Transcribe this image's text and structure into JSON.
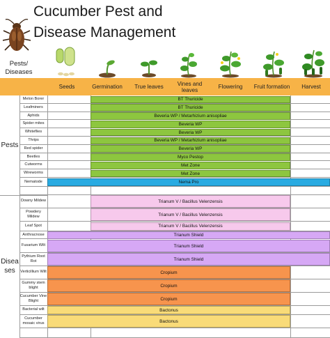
{
  "title": [
    "Cucumber Pest and",
    "Disease Management"
  ],
  "corner_label": [
    "Pests/",
    "Diseases"
  ],
  "stages": [
    {
      "label": "Seeds",
      "center": 94,
      "icon": "seeds-icon"
    },
    {
      "label": "Germination",
      "center": 154,
      "icon": "germination-sprout-icon"
    },
    {
      "label": "True leaves",
      "center": 214,
      "icon": "true-leaves-seedling-icon"
    },
    {
      "label": "Vines and leaves",
      "center": 271,
      "icon": "vine-plant-icon"
    },
    {
      "label": "Flowering",
      "center": 331,
      "icon": "flowering-plant-icon"
    },
    {
      "label": "Fruit formation",
      "center": 393,
      "icon": "fruiting-plant-icon"
    },
    {
      "label": "Harvest",
      "center": 449,
      "icon": "harvest-plant-icon"
    }
  ],
  "groups": [
    {
      "label": "Pests",
      "first_row": 0,
      "last_row": 11
    },
    {
      "label": "Disea ses",
      "first_row": 12,
      "last_row": 23
    }
  ],
  "colors": {
    "header": "#f7b347",
    "green": "#8dc63f",
    "blue": "#29abe2",
    "pink": "#f7c9ec",
    "violet": "#d6a8f5",
    "orange": "#f7944d",
    "yellow": "#f9db78"
  },
  "rows": [
    {
      "name": "Melon Borer",
      "treatment": "BT Thuricide",
      "color": "green",
      "from": 1,
      "to": 5
    },
    {
      "name": "Leafminers",
      "treatment": "BT Thuricide",
      "color": "green",
      "from": 1,
      "to": 5
    },
    {
      "name": "Aphids",
      "treatment": "Beveria WP / Metarhizium anisopliae",
      "color": "green",
      "from": 1,
      "to": 5
    },
    {
      "name": "Spider mites",
      "treatment": "Beveria WP",
      "color": "green",
      "from": 1,
      "to": 5
    },
    {
      "name": "Whiteflies",
      "treatment": "Beveria WP",
      "color": "green",
      "from": 1,
      "to": 5
    },
    {
      "name": "Thrips",
      "treatment": "Beveria WP / Metarhizium anisopliae",
      "color": "green",
      "from": 1,
      "to": 5
    },
    {
      "name": "Red spider",
      "treatment": "Beveria WP",
      "color": "green",
      "from": 1,
      "to": 5
    },
    {
      "name": "Beetles",
      "treatment": "Myco Pestop",
      "color": "green",
      "from": 1,
      "to": 5
    },
    {
      "name": "Cutworms",
      "treatment": "Met Zone",
      "color": "green",
      "from": 1,
      "to": 5
    },
    {
      "name": "Wireworms",
      "treatment": "Met Zone",
      "color": "green",
      "from": 1,
      "to": 5
    },
    {
      "name": "Nematode",
      "treatment": "Nema Pro",
      "color": "blue",
      "from": 0,
      "to": 6
    },
    {
      "name": "",
      "treatment": "",
      "color": "",
      "from": 0,
      "to": 0
    },
    {
      "name": "Downy Mildew",
      "treatment": "Trianum V / Bacillus Velenzensis",
      "color": "pink",
      "from": 1,
      "to": 5
    },
    {
      "name": "Powdery Mildew",
      "treatment": "Trianum V / Bacillus Velenzensis",
      "color": "pink",
      "from": 1,
      "to": 5
    },
    {
      "name": "Leaf Spot",
      "treatment": "Trianum V / Bacillus Velenzensis",
      "color": "pink",
      "from": 1,
      "to": 5
    },
    {
      "name": "Anthracnose",
      "treatment": "Trianum Shield",
      "color": "violet",
      "from": 0,
      "to": 6
    },
    {
      "name": "Fusarium Wilt",
      "treatment": "Trianum Shield",
      "color": "violet",
      "from": 0,
      "to": 6
    },
    {
      "name": "Pythium Root Rot",
      "treatment": "Trianum Shield",
      "color": "violet",
      "from": 0,
      "to": 6
    },
    {
      "name": "Verticillium Wilt",
      "treatment": "Cropium",
      "color": "orange",
      "from": 0,
      "to": 5
    },
    {
      "name": "Gummy stem blight",
      "treatment": "Cropium",
      "color": "orange",
      "from": 0,
      "to": 5
    },
    {
      "name": "Cucumber Vine Blight",
      "treatment": "Cropium",
      "color": "orange",
      "from": 0,
      "to": 5
    },
    {
      "name": "Bacterial wilt",
      "treatment": "Bactonus",
      "color": "yellow",
      "from": 0,
      "to": 5
    },
    {
      "name": "Cucumber mosaic virus",
      "treatment": "Bactonus",
      "color": "yellow",
      "from": 0,
      "to": 5
    },
    {
      "name": "",
      "treatment": "",
      "color": "",
      "from": 0,
      "to": 0
    }
  ]
}
